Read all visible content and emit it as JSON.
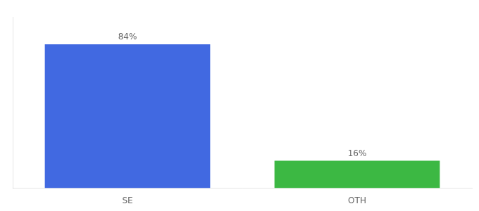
{
  "chart_data": {
    "type": "bar",
    "categories": [
      "SE",
      "OTH"
    ],
    "values": [
      84,
      16
    ],
    "value_labels": [
      "84%",
      "16%"
    ],
    "colors": [
      "#4169E1",
      "#3CB843"
    ],
    "ylim": [
      0,
      100
    ],
    "data_labels": true,
    "tick_labels": "x",
    "grid": false
  }
}
